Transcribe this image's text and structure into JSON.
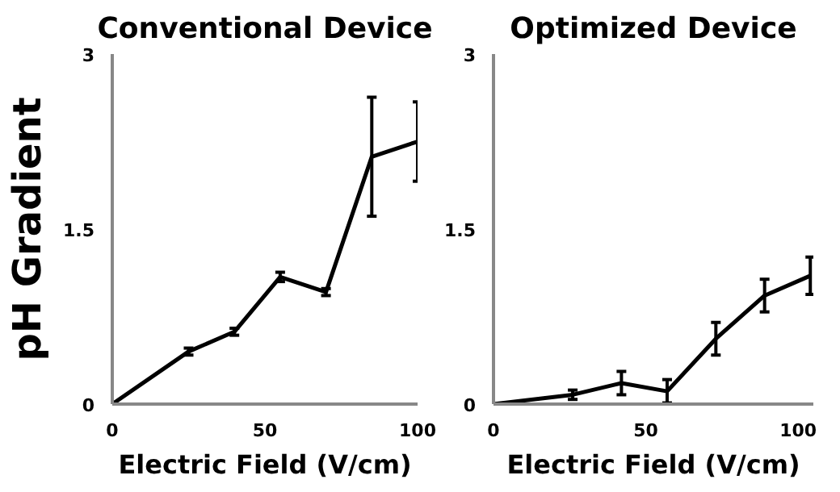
{
  "chart_data": [
    {
      "type": "line",
      "title": "Conventional Device",
      "xlabel": "Electric Field (V/cm)",
      "ylabel": "pH Gradient",
      "x": [
        0,
        25,
        40,
        55,
        70,
        85,
        100
      ],
      "values": [
        0,
        0.45,
        0.62,
        1.09,
        0.96,
        2.12,
        2.25
      ],
      "errors": [
        null,
        0.03,
        0.03,
        0.04,
        0.03,
        0.51,
        0.34
      ],
      "color": "#000000",
      "xlim": [
        0,
        100
      ],
      "ylim": [
        0,
        3
      ],
      "xticks": [
        0,
        50,
        100
      ],
      "yticks": [
        0,
        1.5,
        3
      ],
      "grid": false
    },
    {
      "type": "line",
      "title": "Optimized Device",
      "xlabel": "Electric Field (V/cm)",
      "x": [
        0,
        26,
        42,
        57,
        73,
        89,
        104
      ],
      "values": [
        0,
        0.08,
        0.18,
        0.11,
        0.56,
        0.93,
        1.1
      ],
      "errors": [
        null,
        0.04,
        0.1,
        0.1,
        0.14,
        0.14,
        0.16
      ],
      "color": "#000000",
      "xlim": [
        0,
        105
      ],
      "ylim": [
        0,
        3
      ],
      "xticks": [
        0,
        50,
        100
      ],
      "yticks": [
        0,
        1.5,
        3
      ],
      "grid": false
    }
  ]
}
